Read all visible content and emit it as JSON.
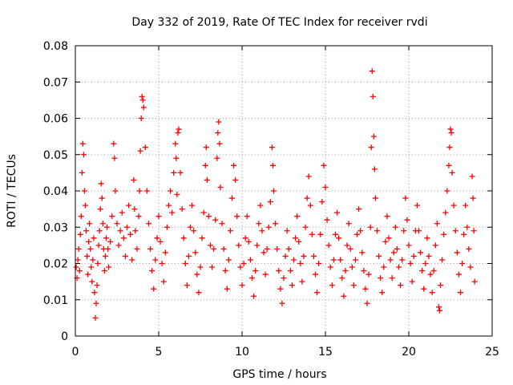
{
  "chart_data": {
    "type": "scatter",
    "title": "Day 332 of 2019, Rate Of TEC Index for receiver rvdi",
    "xlabel": "GPS time / hours",
    "ylabel": "ROTI / TECUs",
    "xlim": [
      0,
      25
    ],
    "ylim": [
      0,
      0.08
    ],
    "xticks": [
      "0",
      "5",
      "10",
      "15",
      "20",
      "25"
    ],
    "yticks": [
      "0",
      "0.01",
      "0.02",
      "0.03",
      "0.04",
      "0.05",
      "0.06",
      "0.07",
      "0.08"
    ],
    "grid": true,
    "marker": "+",
    "color": "#ff0000",
    "series": [
      {
        "values_note": "",
        "points": [
          [
            0.05,
            0.019
          ],
          [
            0.1,
            0.016
          ],
          [
            0.15,
            0.021
          ],
          [
            0.2,
            0.024
          ],
          [
            0.25,
            0.018
          ],
          [
            0.3,
            0.028
          ],
          [
            0.35,
            0.033
          ],
          [
            0.4,
            0.045
          ],
          [
            0.45,
            0.053
          ],
          [
            0.5,
            0.05
          ],
          [
            0.55,
            0.04
          ],
          [
            0.6,
            0.036
          ],
          [
            0.65,
            0.029
          ],
          [
            0.7,
            0.022
          ],
          [
            0.75,
            0.017
          ],
          [
            0.8,
            0.026
          ],
          [
            0.85,
            0.031
          ],
          [
            0.9,
            0.024
          ],
          [
            0.95,
            0.019
          ],
          [
            1.0,
            0.015
          ],
          [
            1.05,
            0.021
          ],
          [
            1.1,
            0.027
          ],
          [
            1.15,
            0.012
          ],
          [
            1.2,
            0.005
          ],
          [
            1.25,
            0.009
          ],
          [
            1.3,
            0.014
          ],
          [
            1.35,
            0.02
          ],
          [
            1.4,
            0.025
          ],
          [
            1.45,
            0.029
          ],
          [
            1.5,
            0.035
          ],
          [
            1.55,
            0.042
          ],
          [
            1.6,
            0.038
          ],
          [
            1.65,
            0.031
          ],
          [
            1.7,
            0.024
          ],
          [
            1.75,
            0.018
          ],
          [
            1.8,
            0.022
          ],
          [
            1.85,
            0.027
          ],
          [
            1.9,
            0.03
          ],
          [
            1.95,
            0.024
          ],
          [
            2.0,
            0.019
          ],
          [
            2.1,
            0.026
          ],
          [
            2.2,
            0.033
          ],
          [
            2.3,
            0.053
          ],
          [
            2.35,
            0.049
          ],
          [
            2.4,
            0.04
          ],
          [
            2.5,
            0.031
          ],
          [
            2.6,
            0.025
          ],
          [
            2.7,
            0.029
          ],
          [
            2.8,
            0.034
          ],
          [
            2.9,
            0.027
          ],
          [
            3.0,
            0.022
          ],
          [
            3.1,
            0.03
          ],
          [
            3.2,
            0.036
          ],
          [
            3.3,
            0.028
          ],
          [
            3.4,
            0.021
          ],
          [
            3.5,
            0.043
          ],
          [
            3.55,
            0.035
          ],
          [
            3.6,
            0.029
          ],
          [
            3.7,
            0.024
          ],
          [
            3.8,
            0.033
          ],
          [
            3.85,
            0.04
          ],
          [
            3.9,
            0.051
          ],
          [
            3.95,
            0.06
          ],
          [
            4.0,
            0.066
          ],
          [
            4.05,
            0.065
          ],
          [
            4.1,
            0.063
          ],
          [
            4.2,
            0.052
          ],
          [
            4.3,
            0.04
          ],
          [
            4.4,
            0.031
          ],
          [
            4.5,
            0.024
          ],
          [
            4.6,
            0.018
          ],
          [
            4.7,
            0.013
          ],
          [
            4.8,
            0.021
          ],
          [
            4.9,
            0.027
          ],
          [
            5.0,
            0.033
          ],
          [
            5.1,
            0.026
          ],
          [
            5.2,
            0.02
          ],
          [
            5.3,
            0.015
          ],
          [
            5.4,
            0.023
          ],
          [
            5.5,
            0.03
          ],
          [
            5.6,
            0.036
          ],
          [
            5.7,
            0.04
          ],
          [
            5.8,
            0.034
          ],
          [
            5.9,
            0.045
          ],
          [
            6.0,
            0.053
          ],
          [
            6.05,
            0.049
          ],
          [
            6.1,
            0.039
          ],
          [
            6.15,
            0.056
          ],
          [
            6.2,
            0.057
          ],
          [
            6.3,
            0.045
          ],
          [
            6.4,
            0.035
          ],
          [
            6.5,
            0.027
          ],
          [
            6.6,
            0.02
          ],
          [
            6.7,
            0.014
          ],
          [
            6.8,
            0.022
          ],
          [
            6.9,
            0.03
          ],
          [
            7.0,
            0.036
          ],
          [
            7.1,
            0.029
          ],
          [
            7.2,
            0.023
          ],
          [
            7.3,
            0.017
          ],
          [
            7.4,
            0.012
          ],
          [
            7.5,
            0.019
          ],
          [
            7.6,
            0.027
          ],
          [
            7.7,
            0.034
          ],
          [
            7.8,
            0.047
          ],
          [
            7.85,
            0.052
          ],
          [
            7.9,
            0.043
          ],
          [
            8.0,
            0.033
          ],
          [
            8.1,
            0.025
          ],
          [
            8.2,
            0.019
          ],
          [
            8.3,
            0.024
          ],
          [
            8.4,
            0.032
          ],
          [
            8.5,
            0.049
          ],
          [
            8.55,
            0.056
          ],
          [
            8.6,
            0.059
          ],
          [
            8.65,
            0.053
          ],
          [
            8.7,
            0.041
          ],
          [
            8.8,
            0.031
          ],
          [
            8.9,
            0.024
          ],
          [
            9.0,
            0.018
          ],
          [
            9.1,
            0.013
          ],
          [
            9.2,
            0.021
          ],
          [
            9.3,
            0.029
          ],
          [
            9.4,
            0.038
          ],
          [
            9.5,
            0.047
          ],
          [
            9.6,
            0.043
          ],
          [
            9.7,
            0.033
          ],
          [
            9.8,
            0.025
          ],
          [
            9.9,
            0.019
          ],
          [
            10.0,
            0.014
          ],
          [
            10.1,
            0.02
          ],
          [
            10.2,
            0.027
          ],
          [
            10.3,
            0.033
          ],
          [
            10.4,
            0.026
          ],
          [
            10.5,
            0.021
          ],
          [
            10.6,
            0.016
          ],
          [
            10.7,
            0.011
          ],
          [
            10.8,
            0.018
          ],
          [
            10.9,
            0.025
          ],
          [
            11.0,
            0.031
          ],
          [
            11.1,
            0.036
          ],
          [
            11.2,
            0.029
          ],
          [
            11.3,
            0.023
          ],
          [
            11.4,
            0.017
          ],
          [
            11.5,
            0.024
          ],
          [
            11.6,
            0.03
          ],
          [
            11.7,
            0.037
          ],
          [
            11.8,
            0.052
          ],
          [
            11.85,
            0.047
          ],
          [
            11.9,
            0.04
          ],
          [
            12.0,
            0.031
          ],
          [
            12.1,
            0.024
          ],
          [
            12.2,
            0.018
          ],
          [
            12.3,
            0.013
          ],
          [
            12.4,
            0.009
          ],
          [
            12.5,
            0.016
          ],
          [
            12.6,
            0.022
          ],
          [
            12.7,
            0.029
          ],
          [
            12.8,
            0.024
          ],
          [
            12.9,
            0.018
          ],
          [
            13.0,
            0.014
          ],
          [
            13.1,
            0.021
          ],
          [
            13.2,
            0.027
          ],
          [
            13.3,
            0.033
          ],
          [
            13.4,
            0.026
          ],
          [
            13.5,
            0.02
          ],
          [
            13.6,
            0.015
          ],
          [
            13.7,
            0.022
          ],
          [
            13.8,
            0.03
          ],
          [
            13.9,
            0.038
          ],
          [
            14.0,
            0.044
          ],
          [
            14.1,
            0.036
          ],
          [
            14.2,
            0.028
          ],
          [
            14.3,
            0.022
          ],
          [
            14.4,
            0.017
          ],
          [
            14.5,
            0.012
          ],
          [
            14.6,
            0.02
          ],
          [
            14.7,
            0.028
          ],
          [
            14.8,
            0.037
          ],
          [
            14.9,
            0.047
          ],
          [
            15.0,
            0.041
          ],
          [
            15.1,
            0.032
          ],
          [
            15.2,
            0.025
          ],
          [
            15.3,
            0.019
          ],
          [
            15.4,
            0.014
          ],
          [
            15.5,
            0.021
          ],
          [
            15.6,
            0.028
          ],
          [
            15.7,
            0.034
          ],
          [
            15.8,
            0.027
          ],
          [
            15.9,
            0.021
          ],
          [
            16.0,
            0.016
          ],
          [
            16.1,
            0.011
          ],
          [
            16.2,
            0.018
          ],
          [
            16.3,
            0.025
          ],
          [
            16.4,
            0.031
          ],
          [
            16.5,
            0.024
          ],
          [
            16.6,
            0.019
          ],
          [
            16.7,
            0.014
          ],
          [
            16.8,
            0.021
          ],
          [
            16.9,
            0.028
          ],
          [
            17.0,
            0.035
          ],
          [
            17.1,
            0.029
          ],
          [
            17.2,
            0.023
          ],
          [
            17.3,
            0.018
          ],
          [
            17.4,
            0.013
          ],
          [
            17.5,
            0.009
          ],
          [
            17.6,
            0.017
          ],
          [
            17.7,
            0.03
          ],
          [
            17.75,
            0.052
          ],
          [
            17.8,
            0.073
          ],
          [
            17.85,
            0.066
          ],
          [
            17.9,
            0.055
          ],
          [
            17.95,
            0.046
          ],
          [
            18.0,
            0.038
          ],
          [
            18.1,
            0.029
          ],
          [
            18.2,
            0.022
          ],
          [
            18.3,
            0.016
          ],
          [
            18.4,
            0.012
          ],
          [
            18.5,
            0.019
          ],
          [
            18.6,
            0.026
          ],
          [
            18.7,
            0.033
          ],
          [
            18.8,
            0.027
          ],
          [
            18.9,
            0.021
          ],
          [
            19.0,
            0.016
          ],
          [
            19.1,
            0.023
          ],
          [
            19.2,
            0.03
          ],
          [
            19.3,
            0.024
          ],
          [
            19.4,
            0.019
          ],
          [
            19.5,
            0.014
          ],
          [
            19.6,
            0.021
          ],
          [
            19.7,
            0.029
          ],
          [
            19.8,
            0.038
          ],
          [
            19.9,
            0.032
          ],
          [
            20.0,
            0.025
          ],
          [
            20.1,
            0.02
          ],
          [
            20.2,
            0.015
          ],
          [
            20.3,
            0.022
          ],
          [
            20.4,
            0.029
          ],
          [
            20.5,
            0.036
          ],
          [
            20.6,
            0.029
          ],
          [
            20.7,
            0.023
          ],
          [
            20.8,
            0.018
          ],
          [
            20.9,
            0.013
          ],
          [
            21.0,
            0.02
          ],
          [
            21.1,
            0.027
          ],
          [
            21.2,
            0.022
          ],
          [
            21.3,
            0.017
          ],
          [
            21.4,
            0.012
          ],
          [
            21.5,
            0.018
          ],
          [
            21.6,
            0.025
          ],
          [
            21.7,
            0.031
          ],
          [
            21.8,
            0.008
          ],
          [
            21.85,
            0.007
          ],
          [
            21.9,
            0.014
          ],
          [
            22.0,
            0.021
          ],
          [
            22.1,
            0.028
          ],
          [
            22.2,
            0.034
          ],
          [
            22.3,
            0.04
          ],
          [
            22.4,
            0.047
          ],
          [
            22.45,
            0.052
          ],
          [
            22.5,
            0.057
          ],
          [
            22.55,
            0.056
          ],
          [
            22.6,
            0.045
          ],
          [
            22.7,
            0.036
          ],
          [
            22.8,
            0.029
          ],
          [
            22.9,
            0.023
          ],
          [
            23.0,
            0.017
          ],
          [
            23.1,
            0.012
          ],
          [
            23.2,
            0.02
          ],
          [
            23.3,
            0.028
          ],
          [
            23.4,
            0.036
          ],
          [
            23.5,
            0.03
          ],
          [
            23.6,
            0.024
          ],
          [
            23.7,
            0.019
          ],
          [
            23.8,
            0.044
          ],
          [
            23.85,
            0.038
          ],
          [
            23.9,
            0.029
          ],
          [
            23.95,
            0.015
          ]
        ]
      }
    ]
  }
}
